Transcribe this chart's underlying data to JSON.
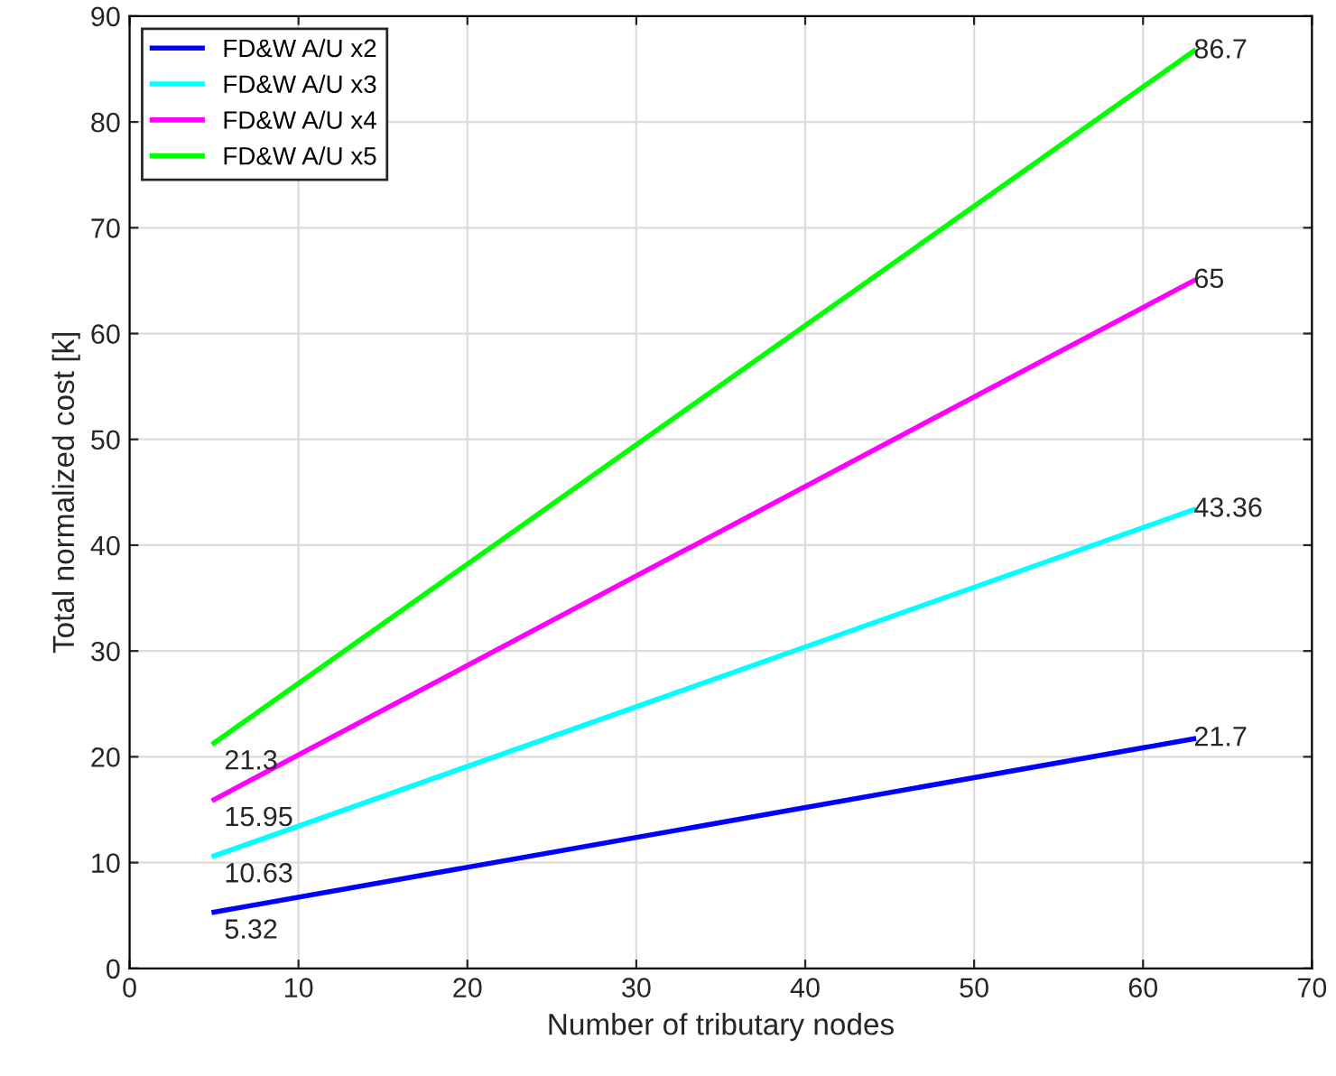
{
  "chart_data": {
    "type": "line",
    "xlabel": "Number of tributary nodes",
    "ylabel": "Total normalized cost [k]",
    "x": [
      5,
      63
    ],
    "series": [
      {
        "name": "FD&W A/U x2",
        "color": "#0000ff",
        "values": [
          5.32,
          21.7
        ]
      },
      {
        "name": "FD&W A/U x3",
        "color": "#00ffff",
        "values": [
          10.63,
          43.36
        ]
      },
      {
        "name": "FD&W A/U x4",
        "color": "#ff00ff",
        "values": [
          15.95,
          65
        ]
      },
      {
        "name": "FD&W A/U x5",
        "color": "#00ff00",
        "values": [
          21.3,
          86.7
        ]
      }
    ],
    "xlim": [
      0,
      70
    ],
    "xticks": [
      0,
      10,
      20,
      30,
      40,
      50,
      60,
      70
    ],
    "ylim": [
      0,
      90
    ],
    "yticks": [
      0,
      10,
      20,
      30,
      40,
      50,
      60,
      70,
      80,
      90
    ],
    "grid": true,
    "legend": "top left",
    "data_labels": true,
    "line_style": "solid",
    "marker": "none"
  }
}
